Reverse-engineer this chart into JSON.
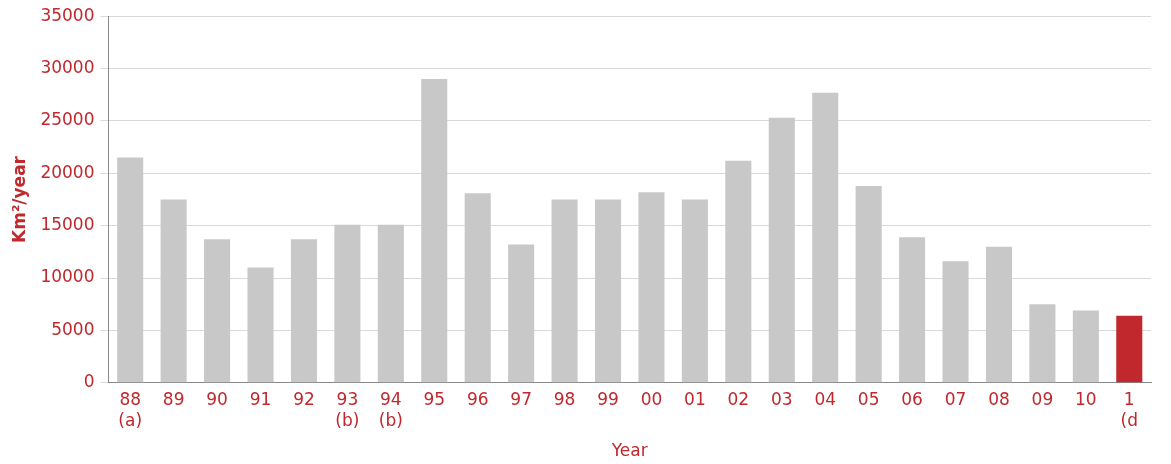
{
  "chart_data": {
    "type": "bar",
    "xlabel": "Year",
    "ylabel": "Km²/year",
    "categories": [
      "88\n(a)",
      "89",
      "90",
      "91",
      "92",
      "93\n(b)",
      "94\n(b)",
      "95",
      "96",
      "97",
      "98",
      "99",
      "00",
      "01",
      "02",
      "03",
      "04",
      "05",
      "06",
      "07",
      "08",
      "09",
      "10",
      "1\n(d"
    ],
    "values": [
      21500,
      17500,
      13700,
      11000,
      13700,
      15100,
      15100,
      29000,
      18100,
      13200,
      17500,
      17500,
      18200,
      17500,
      21200,
      25300,
      27700,
      18800,
      13900,
      11600,
      13000,
      7500,
      6900,
      6400
    ],
    "colors": [
      "#c8c8c8",
      "#c8c8c8",
      "#c8c8c8",
      "#c8c8c8",
      "#c8c8c8",
      "#c8c8c8",
      "#c8c8c8",
      "#c8c8c8",
      "#c8c8c8",
      "#c8c8c8",
      "#c8c8c8",
      "#c8c8c8",
      "#c8c8c8",
      "#c8c8c8",
      "#c8c8c8",
      "#c8c8c8",
      "#c8c8c8",
      "#c8c8c8",
      "#c8c8c8",
      "#c8c8c8",
      "#c8c8c8",
      "#c8c8c8",
      "#c8c8c8",
      "#c0282d"
    ],
    "ylim": [
      0,
      35000
    ],
    "yticks": [
      0,
      5000,
      10000,
      15000,
      20000,
      25000,
      30000,
      35000
    ],
    "grid": "y",
    "legend": false
  }
}
